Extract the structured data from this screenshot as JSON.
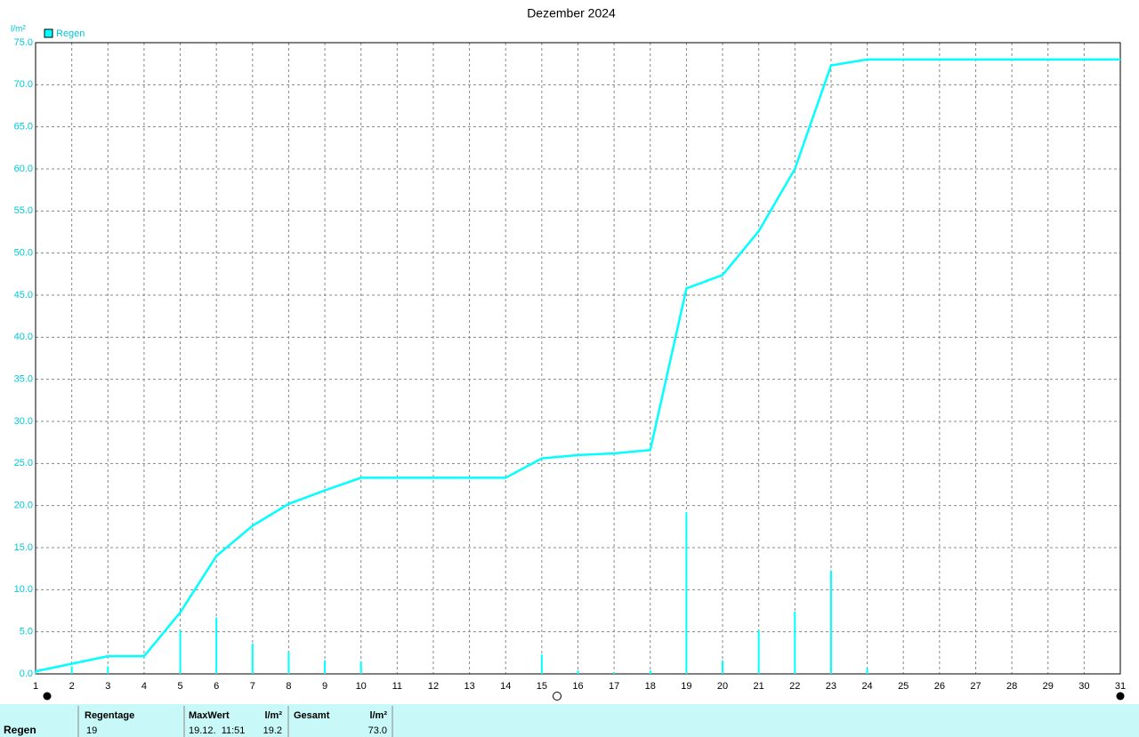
{
  "chart_data": {
    "type": "line",
    "title": "Dezember 2024",
    "y_label": "l/m²",
    "x": [
      1,
      2,
      3,
      4,
      5,
      6,
      7,
      8,
      9,
      10,
      11,
      12,
      13,
      14,
      15,
      16,
      17,
      18,
      19,
      20,
      21,
      22,
      23,
      24,
      25,
      26,
      27,
      28,
      29,
      30,
      31
    ],
    "series": [
      {
        "name": "Regen",
        "color": "#00ffff",
        "values": [
          0.3,
          1.2,
          2.1,
          2.1,
          7.3,
          14.0,
          17.6,
          20.2,
          21.8,
          23.3,
          23.3,
          23.3,
          23.3,
          23.3,
          25.6,
          26.0,
          26.2,
          26.6,
          45.8,
          47.4,
          52.6,
          60.0,
          72.3,
          73.0,
          73.0,
          73.0,
          73.0,
          73.0,
          73.0,
          73.0,
          73.0
        ]
      }
    ],
    "bars": {
      "color": "#00ffff",
      "values": [
        0.3,
        0.9,
        0.9,
        0,
        5.2,
        6.7,
        3.6,
        2.6,
        1.6,
        1.5,
        0,
        0,
        0,
        0,
        2.3,
        0.4,
        0.2,
        0.4,
        19.2,
        1.6,
        5.2,
        7.4,
        12.3,
        0.7,
        0,
        0,
        0,
        0,
        0,
        0,
        0
      ]
    },
    "xlim": [
      1,
      31
    ],
    "xticks": [
      1,
      2,
      3,
      4,
      5,
      6,
      7,
      8,
      9,
      10,
      11,
      12,
      13,
      14,
      15,
      16,
      17,
      18,
      19,
      20,
      21,
      22,
      23,
      24,
      25,
      26,
      27,
      28,
      29,
      30,
      31
    ],
    "ylim": [
      0,
      75
    ],
    "yticks": [
      {
        "value": 0,
        "label": "0.0"
      },
      {
        "value": 5,
        "label": "5.0"
      },
      {
        "value": 10,
        "label": "10.0"
      },
      {
        "value": 15,
        "label": "15.0"
      },
      {
        "value": 20,
        "label": "20.0"
      },
      {
        "value": 25,
        "label": "25.0"
      },
      {
        "value": 30,
        "label": "30.0"
      },
      {
        "value": 35,
        "label": "35.0"
      },
      {
        "value": 40,
        "label": "40.0"
      },
      {
        "value": 45,
        "label": "45.0"
      },
      {
        "value": 50,
        "label": "50.0"
      },
      {
        "value": 55,
        "label": "55.0"
      },
      {
        "value": 60,
        "label": "60.0"
      },
      {
        "value": 65,
        "label": "65.0"
      },
      {
        "value": 70,
        "label": "70.0"
      },
      {
        "value": 75,
        "label": "75.0"
      }
    ],
    "grid": true,
    "legend": "top-left"
  },
  "summary": {
    "row_label": "Regen",
    "headers": [
      "Regentage",
      "MaxWert",
      "l/m²",
      "Gesamt",
      "l/m²"
    ],
    "cells": [
      "19",
      "19.12.  11:51",
      "19.2",
      "73.0"
    ]
  }
}
